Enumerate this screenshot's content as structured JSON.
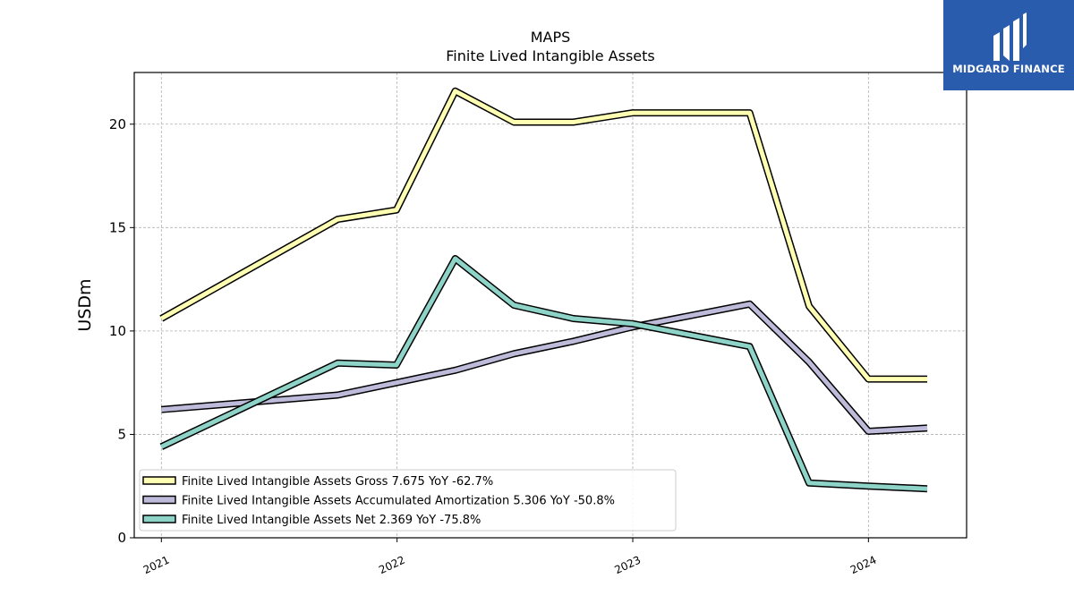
{
  "brand": {
    "name": "MIDGARD FINANCE",
    "background_color": "#2a5cad"
  },
  "chart_data": {
    "type": "line",
    "title": "MAPS",
    "subtitle": "Finite Lived Intangible Assets",
    "xlabel": "",
    "ylabel": "USDm",
    "x": [
      "2021-01-01",
      "2021-10-01",
      "2021-12-31",
      "2022-04-01",
      "2022-07-01",
      "2022-10-01",
      "2023-01-01",
      "2023-07-01",
      "2023-10-01",
      "2024-01-01",
      "2024-04-01"
    ],
    "x_ticks": [
      "2021",
      "2022",
      "2023",
      "2024"
    ],
    "y_ticks": [
      0,
      5,
      10,
      15,
      20
    ],
    "ylim": [
      0,
      22.5
    ],
    "xlim": [
      "2020-11-20",
      "2024-06-01"
    ],
    "grid": true,
    "legend_position": "lower-left",
    "series": [
      {
        "name": "Finite Lived Intangible Assets Gross",
        "legend_label": "Finite Lived Intangible Assets Gross  7.675 YoY -62.7%",
        "color": "#ffffb3",
        "values": [
          10.6,
          15.4,
          15.85,
          21.6,
          20.1,
          20.1,
          20.55,
          20.55,
          11.2,
          7.675,
          7.675
        ]
      },
      {
        "name": "Finite Lived Intangible Assets Accumulated Amortization",
        "legend_label": "Finite Lived Intangible Assets Accumulated Amortization  5.306 YoY -50.8%",
        "color": "#bebada",
        "values": [
          6.2,
          6.9,
          7.5,
          8.1,
          8.9,
          9.5,
          10.2,
          11.3,
          8.5,
          5.15,
          5.306
        ]
      },
      {
        "name": "Finite Lived Intangible Assets Net",
        "legend_label": "Finite Lived Intangible Assets Net  2.369 YoY -75.8%",
        "color": "#8dd3c7",
        "values": [
          4.4,
          8.45,
          8.35,
          13.5,
          11.25,
          10.6,
          10.35,
          9.25,
          2.65,
          2.5,
          2.369
        ]
      }
    ]
  }
}
